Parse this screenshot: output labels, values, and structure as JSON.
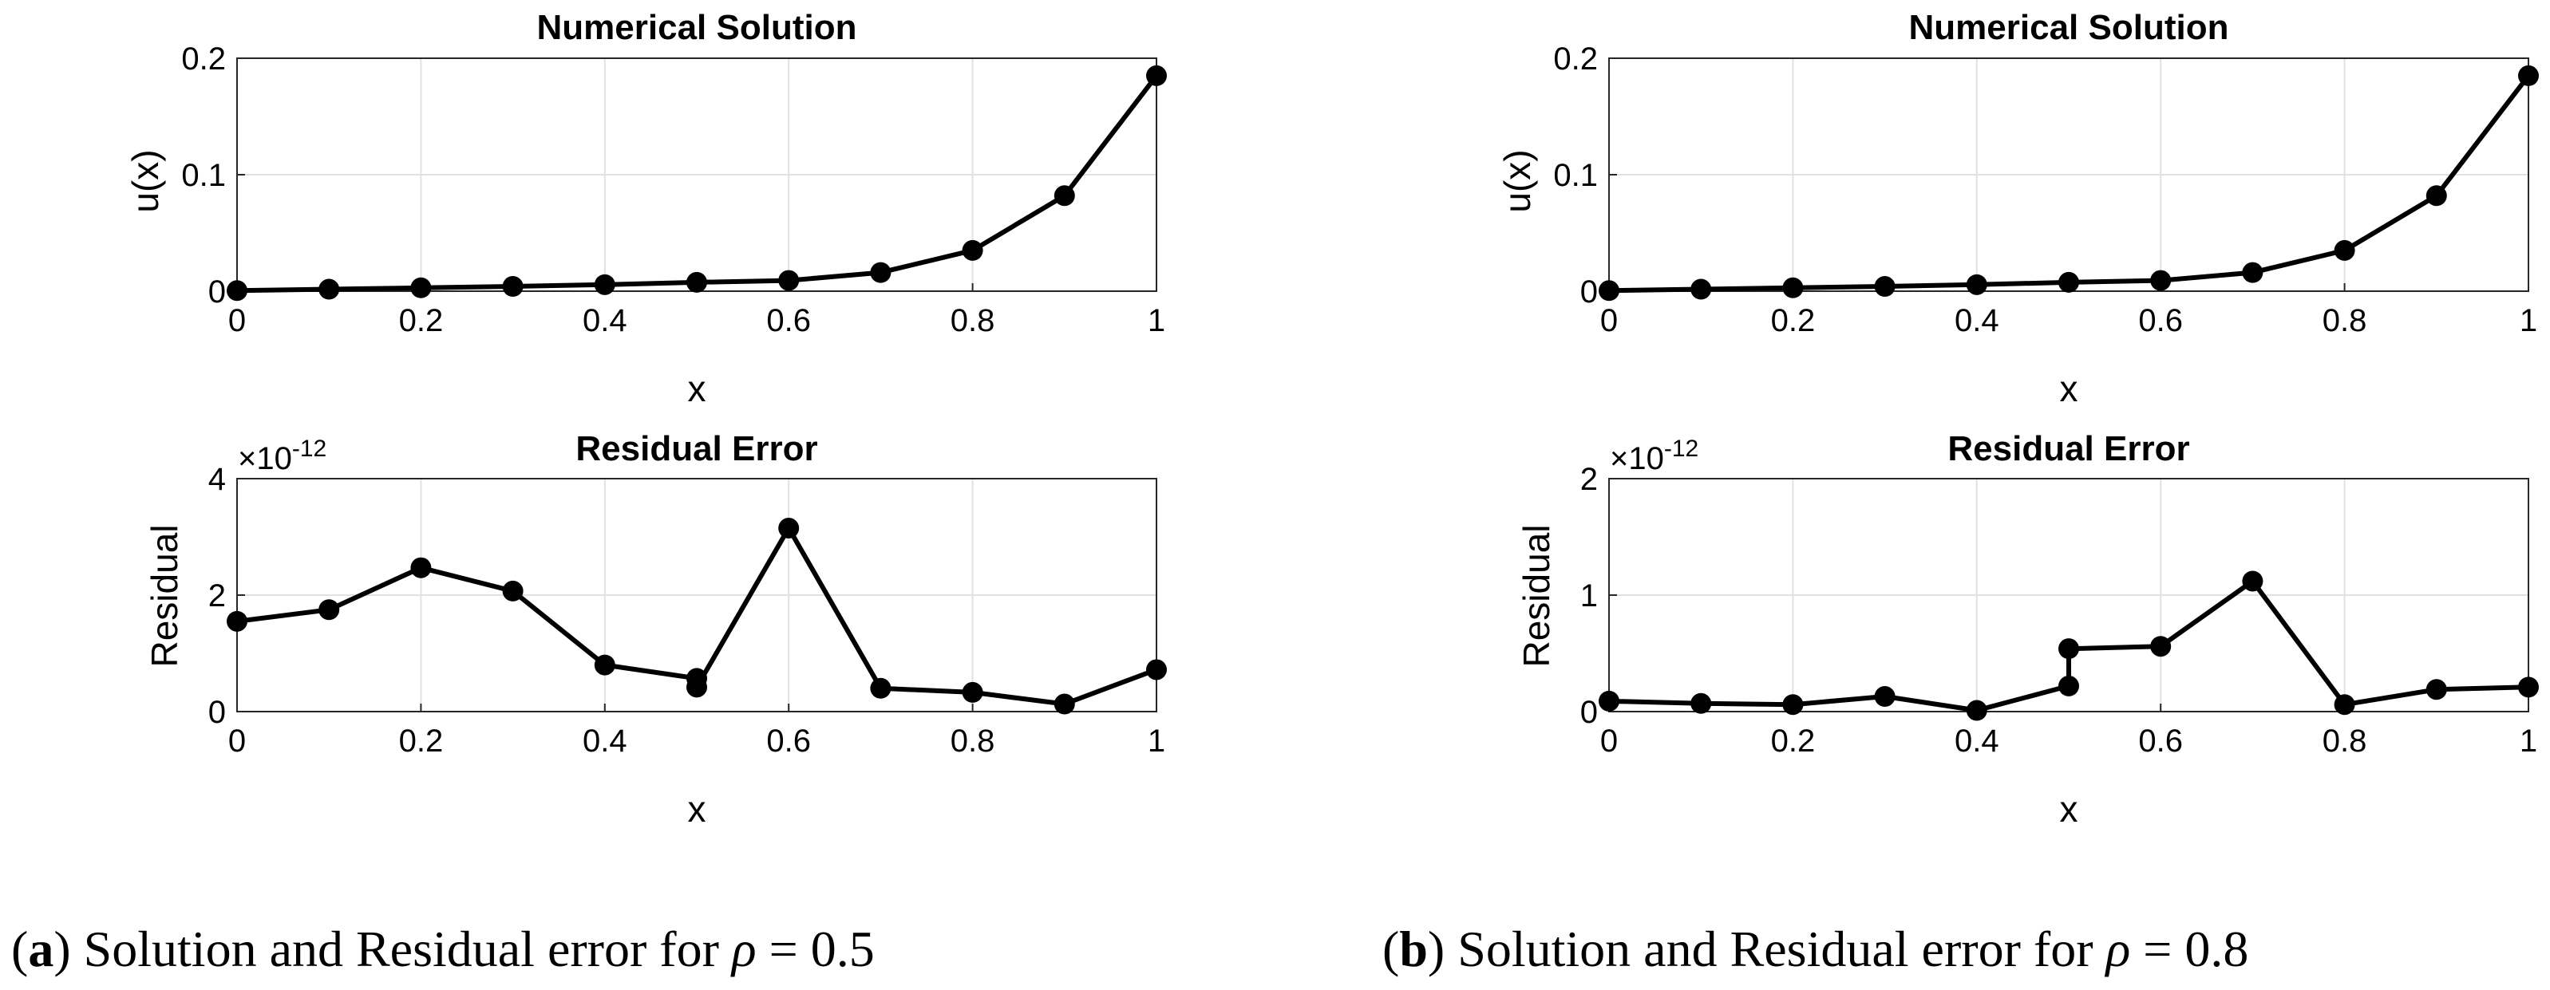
{
  "captions": [
    {
      "letter": "a",
      "text": " Solution and Residual error for ",
      "symbol": "ρ",
      "value": " = 0.5"
    },
    {
      "letter": "b",
      "text": " Solution and Residual error for ",
      "symbol": "ρ",
      "value": " = 0.8"
    }
  ],
  "exponent": {
    "base": "×10",
    "power": "-12"
  },
  "chart_data": [
    {
      "type": "line",
      "panel": "a",
      "title": "Numerical Solution",
      "xlabel": "x",
      "ylabel": "u(x)",
      "xlim": [
        0,
        1
      ],
      "ylim": [
        0,
        0.2
      ],
      "xticks": [
        "0",
        "0.2",
        "0.4",
        "0.6",
        "0.8",
        "1"
      ],
      "yticks": [
        "0",
        "0.1",
        "0.2"
      ],
      "grid": true,
      "x": [
        0,
        0.1,
        0.2,
        0.3,
        0.4,
        0.5,
        0.6,
        0.7,
        0.8,
        0.9,
        1.0
      ],
      "y": [
        0.0005,
        0.0017,
        0.0029,
        0.0041,
        0.0056,
        0.0076,
        0.0092,
        0.016,
        0.035,
        0.082,
        0.185
      ],
      "color": "#000000"
    },
    {
      "type": "line",
      "panel": "a",
      "title": "Residual Error",
      "xlabel": "x",
      "ylabel": "Residual",
      "xlim": [
        0,
        1
      ],
      "ylim": [
        0,
        4e-12
      ],
      "xticks": [
        "0",
        "0.2",
        "0.4",
        "0.6",
        "0.8",
        "1"
      ],
      "yticks": [
        "0",
        "2",
        "4"
      ],
      "grid": true,
      "x": [
        0,
        0.1,
        0.2,
        0.3,
        0.4,
        0.5,
        0.5,
        0.6,
        0.7,
        0.8,
        0.9,
        1.0
      ],
      "y": [
        1.55e-12,
        1.75e-12,
        2.47e-12,
        2.07e-12,
        8e-13,
        5.7e-13,
        4.2e-13,
        3.15e-12,
        4e-13,
        3.3e-13,
        1.3e-13,
        7.2e-13
      ],
      "color": "#000000"
    },
    {
      "type": "line",
      "panel": "b",
      "title": "Numerical Solution",
      "xlabel": "x",
      "ylabel": "u(x)",
      "xlim": [
        0,
        1
      ],
      "ylim": [
        0,
        0.2
      ],
      "xticks": [
        "0",
        "0.2",
        "0.4",
        "0.6",
        "0.8",
        "1"
      ],
      "yticks": [
        "0",
        "0.1",
        "0.2"
      ],
      "grid": true,
      "x": [
        0,
        0.1,
        0.2,
        0.3,
        0.4,
        0.5,
        0.6,
        0.7,
        0.8,
        0.9,
        1.0
      ],
      "y": [
        0.0005,
        0.0017,
        0.0029,
        0.0041,
        0.0056,
        0.0076,
        0.0092,
        0.016,
        0.035,
        0.082,
        0.185
      ],
      "color": "#000000"
    },
    {
      "type": "line",
      "panel": "b",
      "title": "Residual Error",
      "xlabel": "x",
      "ylabel": "Residual",
      "xlim": [
        0,
        1
      ],
      "ylim": [
        0,
        2e-12
      ],
      "xticks": [
        "0",
        "0.2",
        "0.4",
        "0.6",
        "0.8",
        "1"
      ],
      "yticks": [
        "0",
        "1",
        "2"
      ],
      "grid": true,
      "x": [
        0,
        0.1,
        0.2,
        0.3,
        0.4,
        0.5,
        0.5,
        0.6,
        0.7,
        0.8,
        0.9,
        1.0
      ],
      "y": [
        9e-14,
        7e-14,
        6e-14,
        1.3e-13,
        1e-14,
        2.2e-13,
        5.4e-13,
        5.6e-13,
        1.12e-12,
        6e-14,
        1.9e-13,
        2.1e-13
      ],
      "color": "#000000"
    }
  ]
}
